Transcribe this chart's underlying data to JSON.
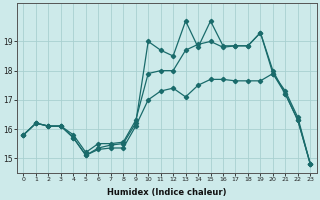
{
  "xlabel": "Humidex (Indice chaleur)",
  "x_ticks": [
    0,
    1,
    2,
    3,
    4,
    5,
    6,
    7,
    8,
    9,
    10,
    11,
    12,
    13,
    14,
    15,
    16,
    17,
    18,
    19,
    20,
    21,
    22,
    23
  ],
  "ylim": [
    14.5,
    20.3
  ],
  "xlim": [
    -0.5,
    23.5
  ],
  "y_ticks": [
    15,
    16,
    17,
    18,
    19
  ],
  "bg_color": "#cdeaea",
  "grid_color": "#a8d0d0",
  "line_color": "#1a6b6b",
  "line1_y": [
    15.8,
    16.2,
    16.1,
    16.1,
    15.7,
    15.1,
    15.35,
    15.45,
    15.5,
    16.2,
    19.0,
    18.7,
    18.5,
    19.7,
    18.8,
    19.7,
    18.85,
    18.85,
    18.85,
    19.3,
    18.0,
    17.2,
    16.3,
    14.8
  ],
  "line2_y": [
    15.8,
    16.2,
    16.1,
    16.1,
    15.8,
    15.2,
    15.5,
    15.5,
    15.55,
    16.3,
    17.9,
    18.0,
    18.0,
    18.7,
    18.9,
    19.0,
    18.8,
    18.85,
    18.85,
    19.3,
    17.9,
    17.2,
    16.3,
    14.8
  ],
  "line3_y": [
    15.8,
    16.2,
    16.1,
    16.1,
    15.7,
    15.1,
    15.3,
    15.35,
    15.35,
    16.1,
    17.0,
    17.3,
    17.4,
    17.1,
    17.5,
    17.7,
    17.7,
    17.65,
    17.65,
    17.65,
    17.9,
    17.3,
    16.4,
    14.8
  ]
}
